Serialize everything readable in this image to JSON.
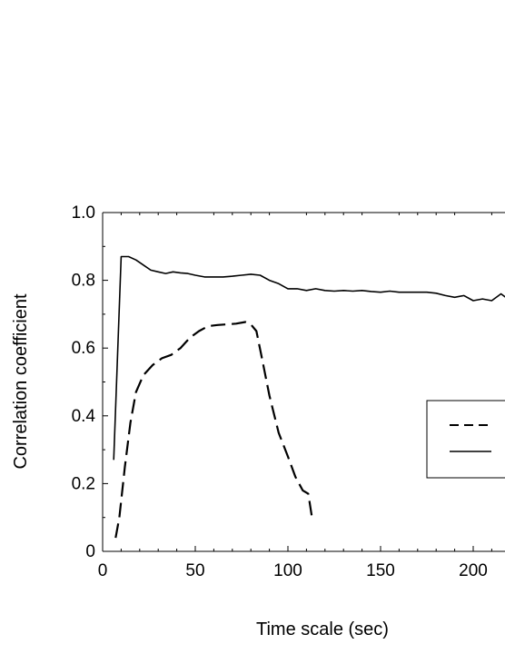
{
  "chart_data": {
    "type": "line",
    "title": "",
    "xlabel": "Time scale (sec)",
    "ylabel": "Correlation coefficient",
    "xlim": [
      0,
      220
    ],
    "ylim": [
      0,
      1.0
    ],
    "x_ticks": [
      0,
      50,
      100,
      150,
      200
    ],
    "x_tick_labels": [
      "0",
      "50",
      "100",
      "150",
      "200"
    ],
    "y_ticks": [
      0,
      0.2,
      0.4,
      0.6,
      0.8,
      1.0
    ],
    "y_tick_labels": [
      "0",
      "0.2",
      "0.4",
      "0.6",
      "0.8",
      "1.0"
    ],
    "grid": false,
    "legend_position": "right (partially cropped)",
    "series": [
      {
        "style": "dashed",
        "color": "#000000",
        "x": [
          7,
          9,
          12,
          15,
          18,
          22,
          27,
          32,
          37,
          42,
          47,
          52,
          57,
          62,
          67,
          72,
          77,
          80,
          83,
          86,
          90,
          95,
          100,
          104,
          108,
          111,
          113
        ],
        "y": [
          0.04,
          0.1,
          0.25,
          0.38,
          0.47,
          0.52,
          0.55,
          0.57,
          0.58,
          0.6,
          0.63,
          0.65,
          0.665,
          0.668,
          0.67,
          0.672,
          0.677,
          0.67,
          0.65,
          0.57,
          0.46,
          0.35,
          0.28,
          0.22,
          0.18,
          0.17,
          0.1
        ]
      },
      {
        "style": "solid",
        "color": "#000000",
        "x": [
          6,
          10,
          14,
          18,
          22,
          26,
          30,
          34,
          38,
          42,
          46,
          50,
          55,
          60,
          65,
          70,
          75,
          80,
          85,
          90,
          95,
          100,
          105,
          110,
          115,
          120,
          125,
          130,
          135,
          140,
          145,
          150,
          155,
          160,
          165,
          170,
          175,
          180,
          185,
          190,
          195,
          200,
          205,
          210,
          215,
          220
        ],
        "y": [
          0.27,
          0.87,
          0.87,
          0.86,
          0.845,
          0.83,
          0.825,
          0.82,
          0.825,
          0.822,
          0.82,
          0.815,
          0.81,
          0.81,
          0.81,
          0.812,
          0.815,
          0.818,
          0.815,
          0.8,
          0.79,
          0.775,
          0.775,
          0.77,
          0.775,
          0.77,
          0.768,
          0.77,
          0.768,
          0.77,
          0.767,
          0.765,
          0.768,
          0.765,
          0.765,
          0.765,
          0.765,
          0.762,
          0.755,
          0.75,
          0.755,
          0.74,
          0.745,
          0.74,
          0.76,
          0.74
        ]
      }
    ]
  }
}
